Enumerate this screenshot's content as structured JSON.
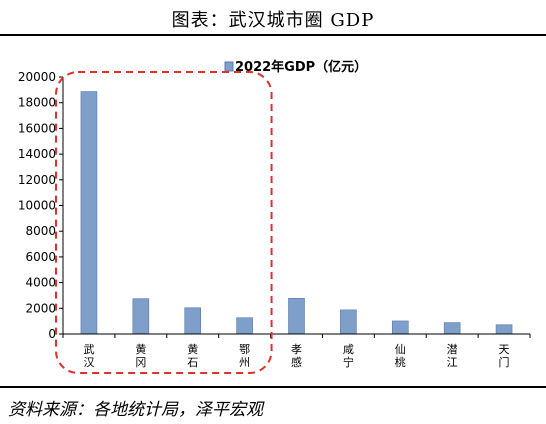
{
  "title": "图表：武汉城市圈 GDP",
  "source": "资料来源：各地统计局，泽平宏观",
  "colors": {
    "bar": "#7f9fcb",
    "bar_edge": "#5878a8",
    "highlight": "#e0302a",
    "axis": "#000000"
  },
  "chart_data": {
    "type": "bar",
    "categories": [
      "武汉",
      "黄冈",
      "黄石",
      "鄂州",
      "孝感",
      "咸宁",
      "仙桃",
      "潜江",
      "天门"
    ],
    "series": [
      {
        "name": "2022年GDP（亿元）",
        "values": [
          18866,
          2747,
          2041,
          1265,
          2776,
          1876,
          1015,
          886,
          720
        ]
      }
    ],
    "y_ticks": [
      "0",
      "2000",
      "4000",
      "6000",
      "8000",
      "10000",
      "12000",
      "14000",
      "16000",
      "18000",
      "20000"
    ],
    "ylim": [
      0,
      20000
    ],
    "grid": false,
    "legend_position": "top-center",
    "highlighted_categories": [
      "武汉",
      "黄冈",
      "黄石",
      "鄂州"
    ]
  }
}
